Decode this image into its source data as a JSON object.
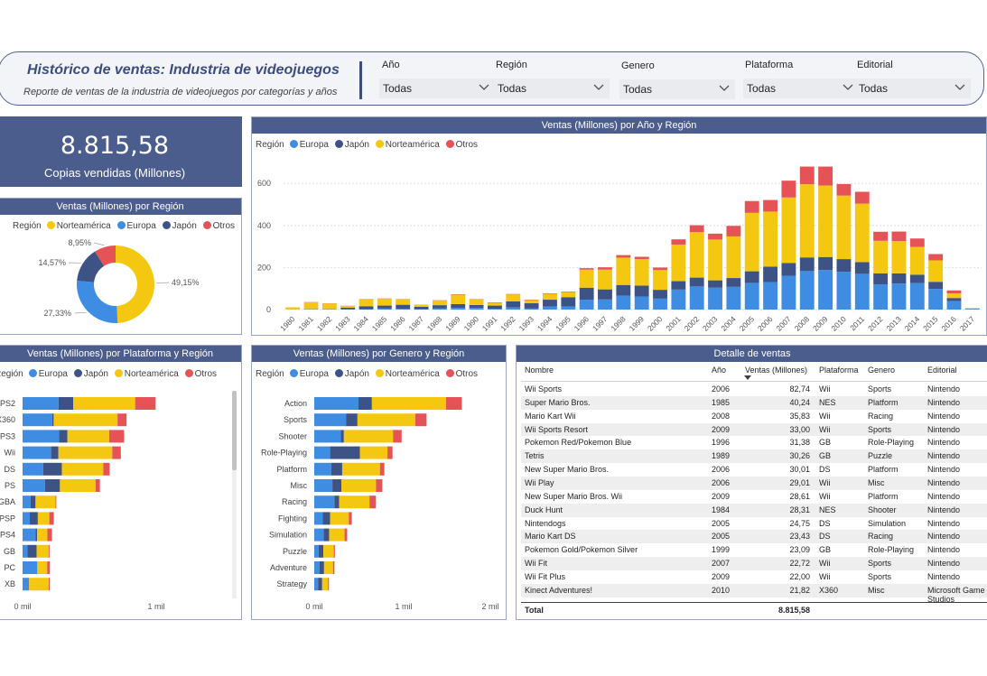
{
  "header": {
    "title": "Histórico de ventas: Industria de videojuegos",
    "subtitle": "Reporte de ventas de la industria de videojuegos por categorías y años"
  },
  "filters": [
    {
      "label": "Año",
      "value": "Todas"
    },
    {
      "label": "Región",
      "value": "Todas"
    },
    {
      "label": "Genero",
      "value": "Todas"
    },
    {
      "label": "Plataforma",
      "value": "Todas"
    },
    {
      "label": "Editorial",
      "value": "Todas"
    }
  ],
  "kpi": {
    "value": "8.815,58",
    "label": "Copias vendidas (Millones)"
  },
  "colors": {
    "Europa": "#3f8de3",
    "Japón": "#3e5385",
    "Norteamérica": "#f4c810",
    "Otros": "#e55356",
    "header": "#4b5d8c"
  },
  "region_chart": {
    "title": "Ventas (Millones) por Región",
    "legend_title": "Región",
    "legend": [
      "Norteamérica",
      "Europa",
      "Japón",
      "Otros"
    ],
    "chart_data": {
      "type": "pie",
      "categories": [
        "Norteamérica",
        "Europa",
        "Japón",
        "Otros"
      ],
      "values": [
        49.15,
        27.33,
        14.57,
        8.95
      ],
      "labels": [
        "49,15%",
        "27,33%",
        "14,57%",
        "8,95%"
      ]
    }
  },
  "year_chart": {
    "title": "Ventas (Millones) por Año y Región",
    "legend_title": "Región",
    "legend": [
      "Europa",
      "Japón",
      "Norteamérica",
      "Otros"
    ],
    "y_ticks": [
      "0",
      "200",
      "400",
      "600"
    ],
    "chart_data": {
      "type": "bar",
      "stacked": true,
      "categories": [
        "1980",
        "1981",
        "1982",
        "1983",
        "1984",
        "1985",
        "1986",
        "1987",
        "1988",
        "1989",
        "1990",
        "1991",
        "1992",
        "1993",
        "1994",
        "1995",
        "1996",
        "1997",
        "1998",
        "1999",
        "2000",
        "2001",
        "2002",
        "2003",
        "2004",
        "2005",
        "2006",
        "2007",
        "2008",
        "2009",
        "2010",
        "2011",
        "2012",
        "2013",
        "2014",
        "2015",
        "2016",
        "2017"
      ],
      "ylim": [
        0,
        700
      ],
      "series": [
        {
          "name": "Europa",
          "values": [
            1,
            2,
            2,
            1,
            2,
            5,
            3,
            2,
            6,
            8,
            8,
            4,
            11,
            5,
            14,
            14,
            47,
            48,
            66,
            62,
            52,
            95,
            110,
            104,
            108,
            127,
            131,
            161,
            183,
            188,
            180,
            170,
            120,
            124,
            126,
            98,
            40,
            3
          ]
        },
        {
          "name": "Japón",
          "values": [
            0,
            0,
            0,
            8,
            14,
            14,
            20,
            11,
            15,
            18,
            14,
            15,
            28,
            25,
            33,
            45,
            57,
            48,
            51,
            52,
            42,
            40,
            42,
            35,
            42,
            55,
            73,
            60,
            65,
            62,
            60,
            56,
            52,
            48,
            40,
            34,
            15,
            1
          ]
        },
        {
          "name": "Norteamérica",
          "values": [
            10,
            33,
            27,
            8,
            33,
            33,
            26,
            9,
            23,
            45,
            25,
            13,
            33,
            15,
            28,
            23,
            86,
            94,
            130,
            126,
            94,
            174,
            216,
            194,
            198,
            278,
            262,
            312,
            348,
            340,
            302,
            278,
            155,
            154,
            132,
            102,
            22,
            2
          ]
        },
        {
          "name": "Otros",
          "values": [
            0,
            1,
            1,
            1,
            1,
            1,
            1,
            1,
            1,
            2,
            2,
            2,
            2,
            2,
            2,
            3,
            7,
            11,
            12,
            11,
            12,
            25,
            33,
            28,
            50,
            56,
            55,
            80,
            84,
            90,
            55,
            56,
            43,
            45,
            40,
            30,
            14,
            1
          ]
        }
      ]
    }
  },
  "platform_chart": {
    "title": "Ventas (Millones) por Plataforma y Región",
    "legend_title": "Región",
    "legend": [
      "Europa",
      "Japón",
      "Norteamérica",
      "Otros"
    ],
    "x_ticks": [
      "0 mil",
      "1 mil"
    ],
    "chart_data": {
      "type": "bar",
      "orientation": "horizontal",
      "stacked": true,
      "categories": [
        "PS2",
        "X360",
        "PS3",
        "Wii",
        "DS",
        "PS",
        "GBA",
        "PSP",
        "PS4",
        "GB",
        "PC",
        "XB"
      ],
      "xlim": [
        0,
        1300
      ],
      "series": [
        {
          "name": "Europa",
          "values": [
            339,
            280,
            343,
            269,
            195,
            212,
            75,
            68,
            123,
            47,
            139,
            60
          ]
        },
        {
          "name": "Japón",
          "values": [
            139,
            13,
            80,
            69,
            175,
            140,
            47,
            76,
            14,
            85,
            0,
            1
          ]
        },
        {
          "name": "Norteamérica",
          "values": [
            583,
            602,
            393,
            507,
            391,
            336,
            188,
            108,
            97,
            114,
            93,
            186
          ]
        },
        {
          "name": "Otros",
          "values": [
            193,
            85,
            141,
            81,
            60,
            41,
            8,
            42,
            43,
            8,
            24,
            9
          ]
        }
      ]
    }
  },
  "genre_chart": {
    "title": "Ventas (Millones) por Genero y Región",
    "legend_title": "Región",
    "legend": [
      "Europa",
      "Japón",
      "Norteamérica",
      "Otros"
    ],
    "x_ticks": [
      "0 mil",
      "1 mil",
      "2 mil"
    ],
    "chart_data": {
      "type": "bar",
      "orientation": "horizontal",
      "stacked": true,
      "categories": [
        "Action",
        "Sports",
        "Shooter",
        "Role-Playing",
        "Platform",
        "Misc",
        "Racing",
        "Fighting",
        "Simulation",
        "Puzzle",
        "Adventure",
        "Strategy"
      ],
      "xlim": [
        0,
        2150
      ],
      "series": [
        {
          "name": "Europa",
          "values": [
            524,
            376,
            313,
            188,
            201,
            215,
            238,
            101,
            113,
            51,
            64,
            45
          ]
        },
        {
          "name": "Japón",
          "values": [
            159,
            136,
            38,
            352,
            130,
            107,
            57,
            87,
            63,
            57,
            52,
            49
          ]
        },
        {
          "name": "Norteamérica",
          "values": [
            878,
            684,
            582,
            327,
            447,
            410,
            359,
            221,
            183,
            123,
            106,
            68
          ]
        },
        {
          "name": "Otros",
          "values": [
            187,
            134,
            102,
            60,
            52,
            74,
            77,
            36,
            31,
            13,
            17,
            12
          ]
        }
      ]
    }
  },
  "detail_table": {
    "title": "Detalle de ventas",
    "columns": [
      "Nombre",
      "Año",
      "Ventas (Millones)",
      "Plataforma",
      "Genero",
      "Editorial"
    ],
    "rows": [
      [
        "Wii Sports",
        "2006",
        "82,74",
        "Wii",
        "Sports",
        "Nintendo"
      ],
      [
        "Super Mario Bros.",
        "1985",
        "40,24",
        "NES",
        "Platform",
        "Nintendo"
      ],
      [
        "Mario Kart Wii",
        "2008",
        "35,83",
        "Wii",
        "Racing",
        "Nintendo"
      ],
      [
        "Wii Sports Resort",
        "2009",
        "33,00",
        "Wii",
        "Sports",
        "Nintendo"
      ],
      [
        "Pokemon Red/Pokemon Blue",
        "1996",
        "31,38",
        "GB",
        "Role-Playing",
        "Nintendo"
      ],
      [
        "Tetris",
        "1989",
        "30,26",
        "GB",
        "Puzzle",
        "Nintendo"
      ],
      [
        "New Super Mario Bros.",
        "2006",
        "30,01",
        "DS",
        "Platform",
        "Nintendo"
      ],
      [
        "Wii Play",
        "2006",
        "29,01",
        "Wii",
        "Misc",
        "Nintendo"
      ],
      [
        "New Super Mario Bros. Wii",
        "2009",
        "28,61",
        "Wii",
        "Platform",
        "Nintendo"
      ],
      [
        "Duck Hunt",
        "1984",
        "28,31",
        "NES",
        "Shooter",
        "Nintendo"
      ],
      [
        "Nintendogs",
        "2005",
        "24,75",
        "DS",
        "Simulation",
        "Nintendo"
      ],
      [
        "Mario Kart DS",
        "2005",
        "23,43",
        "DS",
        "Racing",
        "Nintendo"
      ],
      [
        "Pokemon Gold/Pokemon Silver",
        "1999",
        "23,09",
        "GB",
        "Role-Playing",
        "Nintendo"
      ],
      [
        "Wii Fit",
        "2007",
        "22,72",
        "Wii",
        "Sports",
        "Nintendo"
      ],
      [
        "Wii Fit Plus",
        "2009",
        "22,00",
        "Wii",
        "Sports",
        "Nintendo"
      ],
      [
        "Kinect Adventures!",
        "2010",
        "21,82",
        "X360",
        "Misc",
        "Microsoft Game Studios"
      ]
    ],
    "total_label": "Total",
    "total_value": "8.815,58"
  }
}
